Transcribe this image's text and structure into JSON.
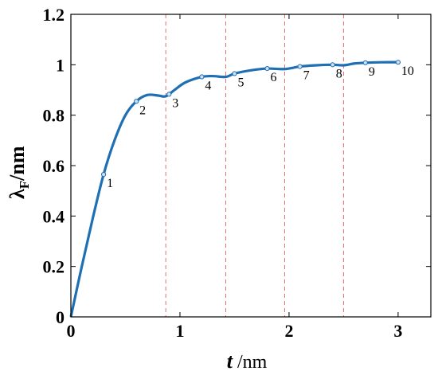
{
  "chart_data": {
    "type": "line",
    "title": "",
    "xlabel_main": "t",
    "xlabel_unit": " /nm",
    "ylabel_main": "λ",
    "ylabel_sub": "F",
    "ylabel_unit": "/nm",
    "xlim": [
      0,
      3.3
    ],
    "ylim": [
      0,
      1.2
    ],
    "xticks": [
      0,
      1,
      2,
      3
    ],
    "yticks": [
      0,
      0.2,
      0.4,
      0.6,
      0.8,
      1,
      1.2
    ],
    "xtick_labels": [
      "0",
      "1",
      "2",
      "3"
    ],
    "ytick_labels": [
      "0",
      "0.2",
      "0.4",
      "0.6",
      "0.8",
      "1",
      "1.2"
    ],
    "grid": false,
    "line_color": "#1f6fb4",
    "marker_color": "#1f6fb4",
    "vline_color": "#e8706f",
    "vlines_x": [
      0.87,
      1.42,
      1.96,
      2.5
    ],
    "curve": {
      "x": [
        0,
        0.1,
        0.2,
        0.3,
        0.4,
        0.5,
        0.6,
        0.7,
        0.8,
        0.87,
        0.95,
        1.05,
        1.2,
        1.3,
        1.42,
        1.5,
        1.65,
        1.8,
        1.96,
        2.1,
        2.25,
        2.4,
        2.5,
        2.6,
        2.7,
        2.85,
        3.0
      ],
      "y": [
        0,
        0.2,
        0.39,
        0.565,
        0.7,
        0.8,
        0.855,
        0.88,
        0.878,
        0.875,
        0.9,
        0.93,
        0.952,
        0.955,
        0.952,
        0.965,
        0.978,
        0.985,
        0.983,
        0.993,
        0.998,
        1.0,
        0.998,
        1.005,
        1.008,
        1.01,
        1.01
      ]
    },
    "points": [
      {
        "label": "1",
        "x": 0.3,
        "y": 0.565
      },
      {
        "label": "2",
        "x": 0.6,
        "y": 0.855
      },
      {
        "label": "3",
        "x": 0.9,
        "y": 0.883
      },
      {
        "label": "4",
        "x": 1.2,
        "y": 0.952
      },
      {
        "label": "5",
        "x": 1.5,
        "y": 0.965
      },
      {
        "label": "6",
        "x": 1.8,
        "y": 0.985
      },
      {
        "label": "7",
        "x": 2.1,
        "y": 0.993
      },
      {
        "label": "8",
        "x": 2.4,
        "y": 1.0
      },
      {
        "label": "9",
        "x": 2.7,
        "y": 1.008
      },
      {
        "label": "10",
        "x": 3.0,
        "y": 1.01
      }
    ]
  }
}
